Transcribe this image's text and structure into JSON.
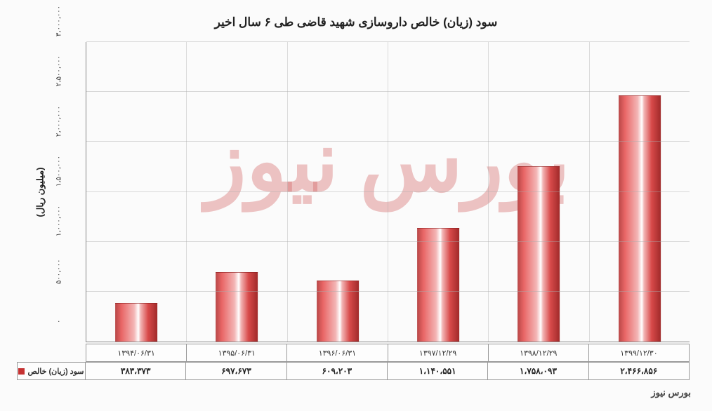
{
  "chart": {
    "type": "bar",
    "title": "سود (زیان) خالص داروسازی شهید قاضی طی ۶ سال اخیر",
    "y_axis_title": "(میلیون ریال)",
    "series_label": "سود (زیان) خالص",
    "swatch_color": "#c53232",
    "bar_width_pct": 42,
    "ylim": [
      0,
      3000000
    ],
    "ytick_step": 500000,
    "yticks": [
      {
        "v": 0,
        "label": "۰"
      },
      {
        "v": 500000,
        "label": "۵۰۰،۰۰۰"
      },
      {
        "v": 1000000,
        "label": "۱،۰۰۰،۰۰۰"
      },
      {
        "v": 1500000,
        "label": "۱،۵۰۰،۰۰۰"
      },
      {
        "v": 2000000,
        "label": "۲،۰۰۰،۰۰۰"
      },
      {
        "v": 2500000,
        "label": "۲،۵۰۰،۰۰۰"
      },
      {
        "v": 3000000,
        "label": "۳،۰۰۰،۰۰۰"
      }
    ],
    "grid_color": "#aaaaaa",
    "background_color": "#fbfbfb",
    "categories": [
      "۱۳۹۴/۰۶/۳۱",
      "۱۳۹۵/۰۶/۳۱",
      "۱۳۹۶/۰۶/۳۱",
      "۱۳۹۷/۱۲/۲۹",
      "۱۳۹۸/۱۲/۲۹",
      "۱۳۹۹/۱۲/۳۰"
    ],
    "values_numeric": [
      383373,
      697673,
      609203,
      1140551,
      1758093,
      2466856
    ],
    "values_display": [
      "۳۸۳،۳۷۳",
      "۶۹۷،۶۷۳",
      "۶۰۹،۲۰۳",
      "۱،۱۴۰،۵۵۱",
      "۱،۷۵۸،۰۹۳",
      "۲،۴۶۶،۸۵۶"
    ],
    "bar_gradient_css": "linear-gradient(90deg, #b94747 0%, #e96666 15%, #f3b6b6 45%, #ffffff 55%, #f3b6b6 60%, #d84a4a 78%, #a02a2a 100%)",
    "watermark_text": "بورس نیوز",
    "watermark_color": "rgba(210,90,90,.35)",
    "credit_text": "بورس نیوز",
    "title_fontsize": 17,
    "axis_label_fontsize": 11,
    "value_fontsize": 12
  }
}
